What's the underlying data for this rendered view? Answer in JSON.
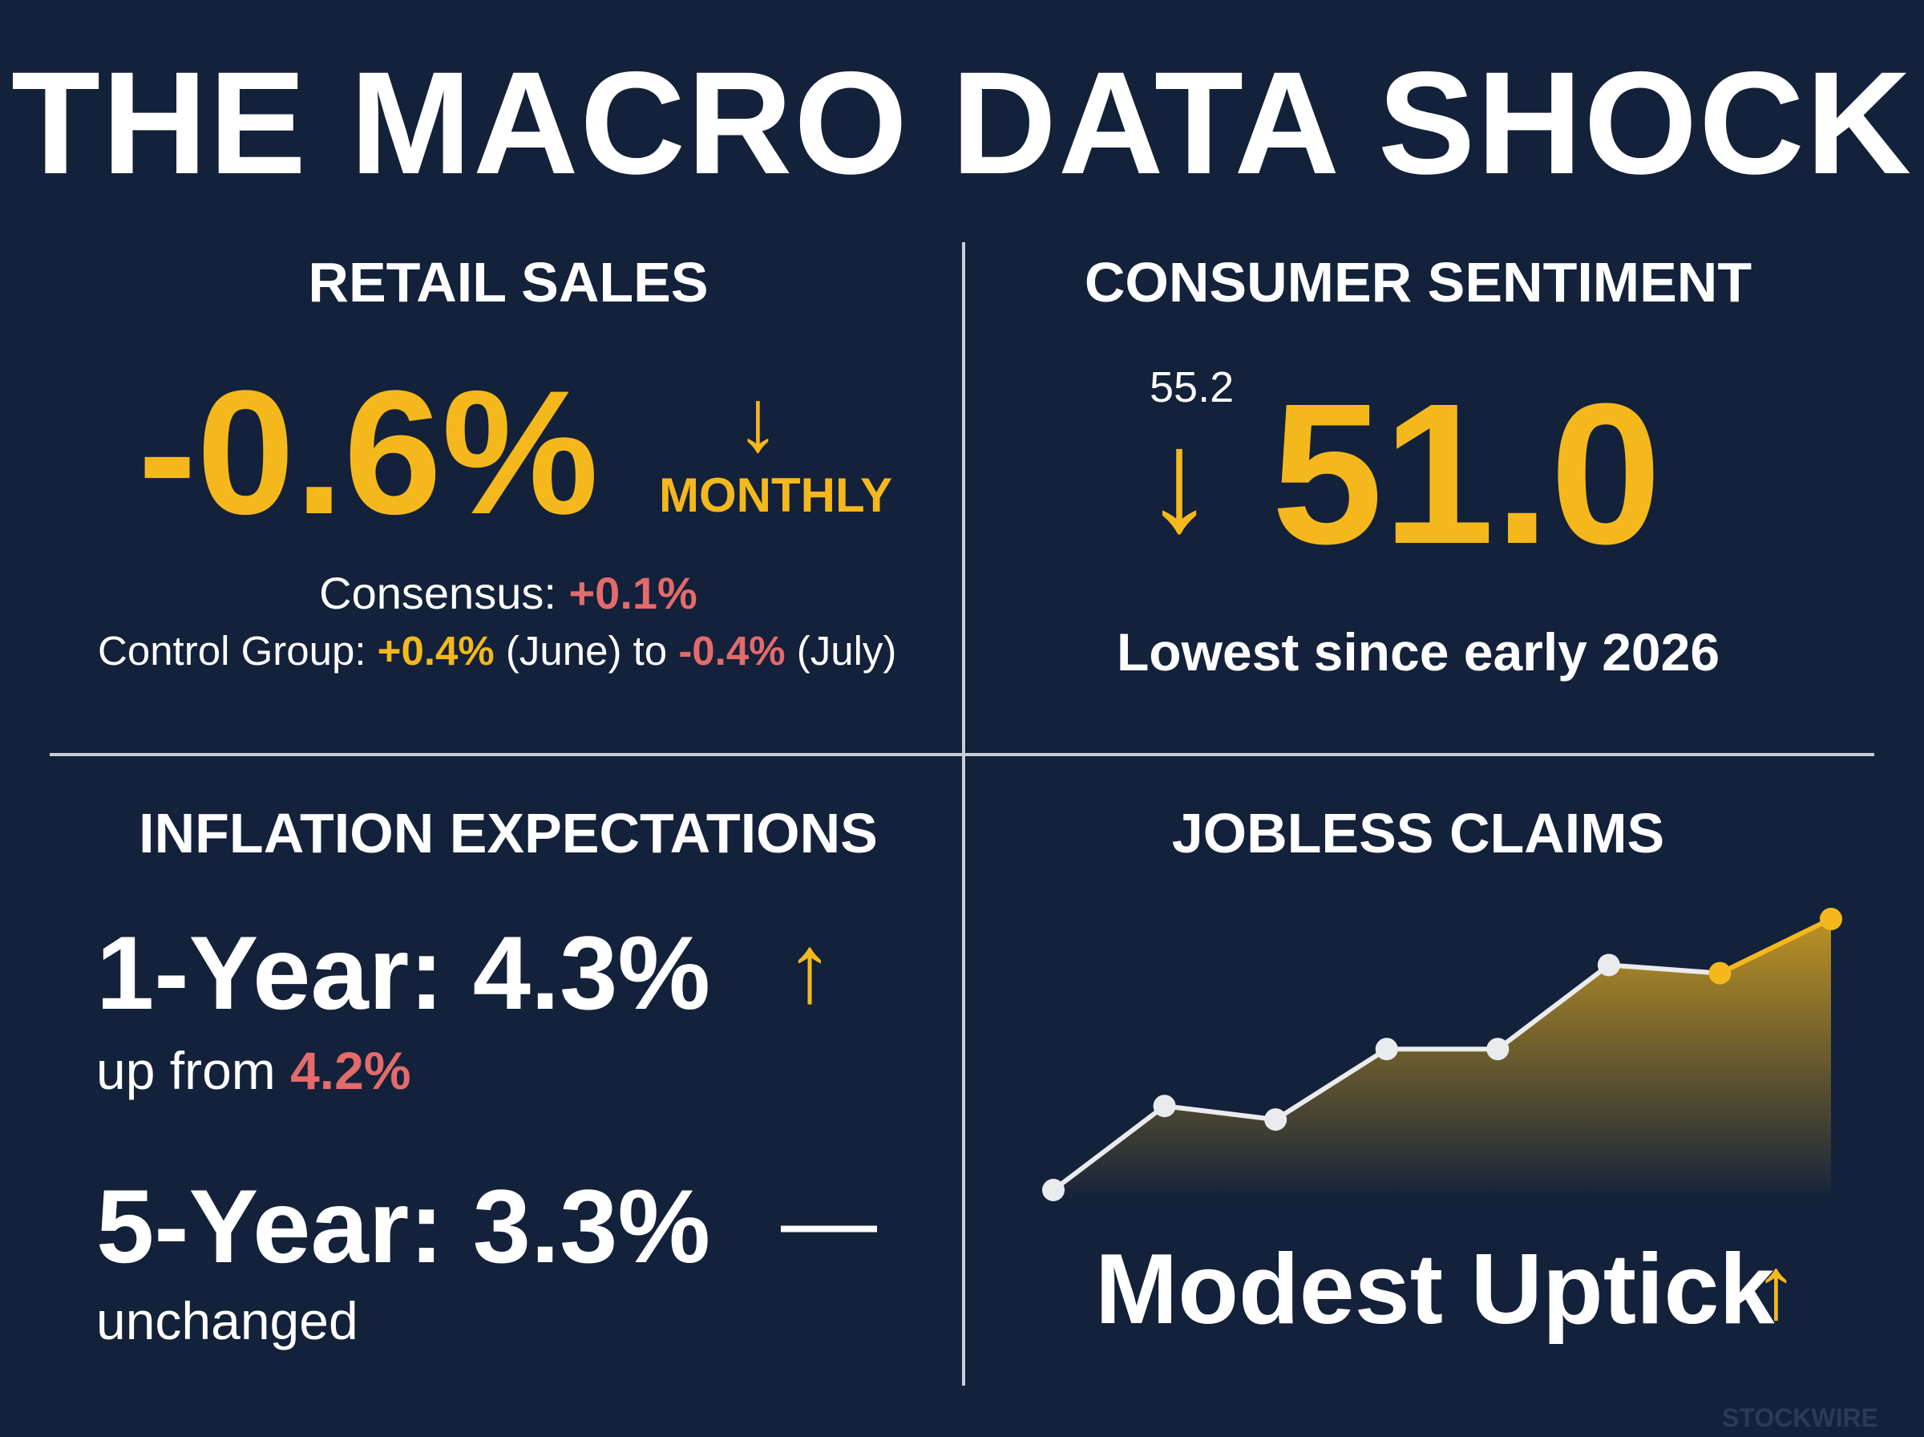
{
  "title": "THE MACRO DATA SHOCK",
  "colors": {
    "background": "#13213a",
    "accent": "#f5b81c",
    "negative": "#e36b6b",
    "text": "#ffffff"
  },
  "retail": {
    "title": "RETAIL SALES",
    "value": "-0.6%",
    "arrow": "↓",
    "period": "MONTHLY",
    "consensus_label": "Consensus:",
    "consensus_value": "+0.1%",
    "control_label": "Control Group:",
    "control_from": "+0.4%",
    "control_from_period": "(June) to",
    "control_to": "-0.4%",
    "control_to_period": "(July)"
  },
  "sentiment": {
    "title": "CONSUMER SENTIMENT",
    "previous": "55.2",
    "arrow": "↓",
    "value": "51.0",
    "note": "Lowest since early 2026"
  },
  "inflation": {
    "title": "INFLATION EXPECTATIONS",
    "one_year": "1-Year: 4.3%",
    "one_year_arrow": "↑",
    "one_year_note": "up from",
    "one_year_prev": "4.2%",
    "five_year": "5-Year: 3.3%",
    "five_year_mark": "—",
    "five_year_note": "unchanged"
  },
  "jobless": {
    "title": "JOBLESS CLAIMS",
    "caption": "Modest Uptick",
    "arrow": "↑"
  },
  "watermark": "STOCKWIRE",
  "chart_data": {
    "type": "line",
    "title": "JOBLESS CLAIMS",
    "x": [
      1,
      2,
      3,
      4,
      5,
      6,
      7,
      8
    ],
    "series": [
      {
        "values": [
          0.0,
          0.31,
          0.26,
          0.52,
          0.52,
          0.83,
          0.8,
          1.0
        ],
        "highlight_from_index": 6
      }
    ],
    "ylim": [
      0,
      1
    ],
    "grid": false,
    "legend": "none"
  }
}
